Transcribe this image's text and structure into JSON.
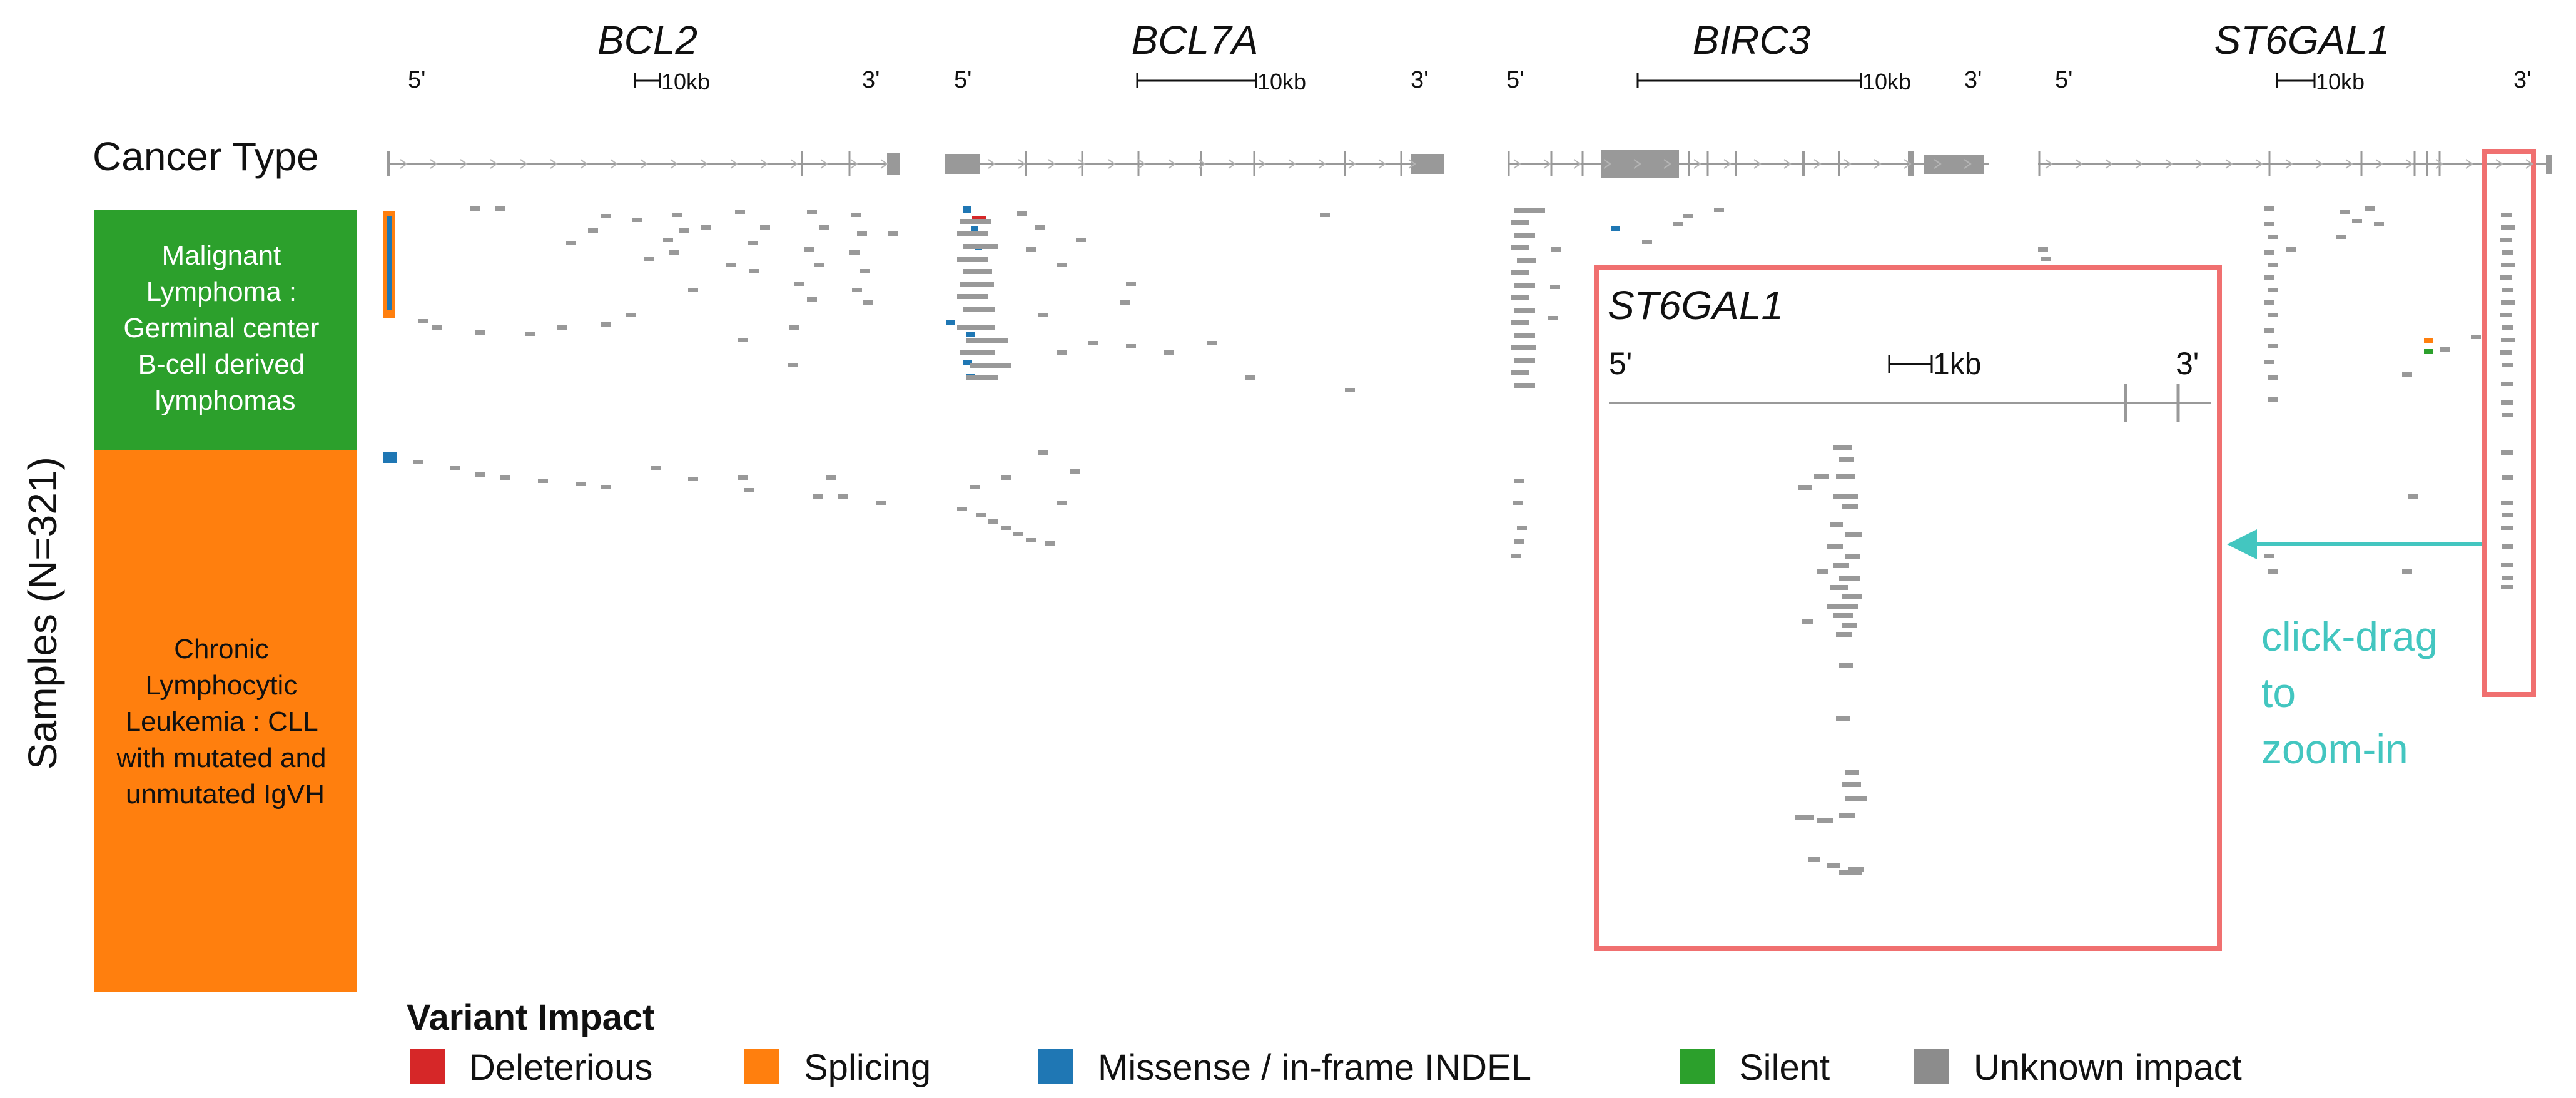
{
  "row_header": "Cancer Type",
  "samples_label": "Samples (N=321)",
  "groups": [
    {
      "lines": [
        "Malignant",
        "Lymphoma :",
        "Germinal center",
        "B-cell derived",
        "lymphomas"
      ],
      "color": "#2ca02c",
      "text_color": "#ffffff"
    },
    {
      "lines": [
        "Chronic",
        "Lymphocytic",
        "Leukemia : CLL",
        "with mutated and",
        "unmutated IgVH"
      ],
      "color": "#ff7f0e",
      "text_color": "#111111"
    }
  ],
  "genes": [
    {
      "name": "BCL2",
      "five_prime": "5'",
      "three_prime": "3'",
      "scale_label": "10kb"
    },
    {
      "name": "BCL7A",
      "five_prime": "5'",
      "three_prime": "3'",
      "scale_label": "10kb"
    },
    {
      "name": "BIRC3",
      "five_prime": "5'",
      "three_prime": "3'",
      "scale_label": "10kb"
    },
    {
      "name": "ST6GAL1",
      "five_prime": "5'",
      "three_prime": "3'",
      "scale_label": "10kb"
    }
  ],
  "zoom_panel": {
    "title": "ST6GAL1",
    "five_prime": "5'",
    "three_prime": "3'",
    "scale_label": "1kb"
  },
  "hint": {
    "lines": [
      "click-drag",
      "to",
      "zoom-in"
    ]
  },
  "legend": {
    "title": "Variant Impact",
    "items": [
      {
        "label": "Deleterious",
        "color": "#d62728"
      },
      {
        "label": "Splicing",
        "color": "#ff7f0e"
      },
      {
        "label": "Missense / in-frame INDEL",
        "color": "#1f77b4"
      },
      {
        "label": "Silent",
        "color": "#2ca02c"
      },
      {
        "label": "Unknown impact",
        "color": "#8c8c8c"
      }
    ]
  },
  "colors": {
    "track": "#999999",
    "exon": "#999999",
    "highlight_box": "#f07070",
    "hint_arrow": "#43c6c0"
  },
  "icons": {
    "arrow": "left-arrow-icon"
  }
}
